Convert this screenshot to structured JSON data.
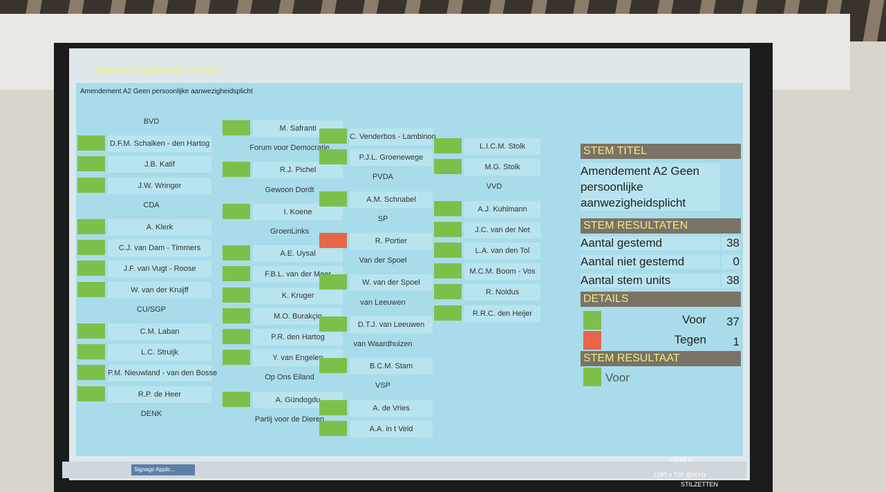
{
  "header": {
    "title": "Raadsvergadering 9-4-2024",
    "subtitle": "Amendement A2 Geen persoonlijke aanwezigheidsplicht"
  },
  "columns": [
    {
      "entries": [
        {
          "name": "BVD"
        },
        {
          "name": "D.F.M. Schalken - den Hartog",
          "color": "#7cc04b"
        },
        {
          "name": "J.B. Katif",
          "color": "#7cc04b"
        },
        {
          "name": "J.W. Wringer",
          "color": "#7cc04b"
        },
        {
          "name": "CDA"
        },
        {
          "name": "A. Klerk",
          "color": "#7cc04b"
        },
        {
          "name": "C.J. van Dam - Timmers",
          "color": "#7cc04b"
        },
        {
          "name": "J.F. van Vugt - Roose",
          "color": "#7cc04b"
        },
        {
          "name": "W. van der Kruijff",
          "color": "#7cc04b"
        },
        {
          "name": "CU/SGP"
        },
        {
          "name": "C.M. Laban",
          "color": "#7cc04b"
        },
        {
          "name": "L.C. Struijk",
          "color": "#7cc04b"
        },
        {
          "name": "P.M. Nieuwland - van den Bosse",
          "color": "#7cc04b"
        },
        {
          "name": "R.P. de Heer",
          "color": "#7cc04b"
        },
        {
          "name": "DENK"
        }
      ]
    },
    {
      "entries": [
        {
          "name": "M. Safranti",
          "color": "#7cc04b"
        },
        {
          "name": "Forum voor Democratie"
        },
        {
          "name": "R.J. Pichel",
          "color": "#7cc04b"
        },
        {
          "name": "Gewoon Dordt"
        },
        {
          "name": "I. Koene",
          "color": "#7cc04b"
        },
        {
          "name": "GroenLinks"
        },
        {
          "name": "A.E. Uysal",
          "color": "#7cc04b"
        },
        {
          "name": "F.B.L. van der Meer",
          "color": "#7cc04b"
        },
        {
          "name": "K. Kruger",
          "color": "#7cc04b"
        },
        {
          "name": "M.O. Burakçin",
          "color": "#7cc04b"
        },
        {
          "name": "P.R. den Hartog",
          "color": "#7cc04b"
        },
        {
          "name": "Y. van Engelen",
          "color": "#7cc04b"
        },
        {
          "name": "Op Ons Eiland"
        },
        {
          "name": "A. Gündogdu",
          "color": "#7cc04b"
        },
        {
          "name": "Partij voor de Dieren"
        }
      ]
    },
    {
      "entries": [
        {
          "name": "C. Venderbos - Lambinon",
          "color": "#7cc04b"
        },
        {
          "name": "P.J.L. Groenewege",
          "color": "#7cc04b"
        },
        {
          "name": "PVDA"
        },
        {
          "name": "A.M. Schnabel",
          "color": "#7cc04b"
        },
        {
          "name": "SP"
        },
        {
          "name": "R. Portier",
          "color": "#e8654a"
        },
        {
          "name": "Van der Spoel"
        },
        {
          "name": "W. van der Spoel",
          "color": "#7cc04b"
        },
        {
          "name": "van Leeuwen"
        },
        {
          "name": "D.T.J. van Leeuwen",
          "color": "#7cc04b"
        },
        {
          "name": "van Waardhuizen"
        },
        {
          "name": "B.C.M. Stam",
          "color": "#7cc04b"
        },
        {
          "name": "VSP"
        },
        {
          "name": "A. de Vries",
          "color": "#7cc04b"
        },
        {
          "name": "A.A. in t Veld",
          "color": "#7cc04b"
        }
      ]
    },
    {
      "entries": [
        {
          "name": "L.I.C.M. Stolk",
          "color": "#7cc04b"
        },
        {
          "name": "M.G. Stolk",
          "color": "#7cc04b"
        },
        {
          "name": "VVD"
        },
        {
          "name": "A.J. Kuhlmann",
          "color": "#7cc04b"
        },
        {
          "name": "J.C. van der Net",
          "color": "#7cc04b"
        },
        {
          "name": "L.A. van den Tol",
          "color": "#7cc04b"
        },
        {
          "name": "M.C.M. Boom - Vos",
          "color": "#7cc04b"
        },
        {
          "name": "R. Noldus",
          "color": "#7cc04b"
        },
        {
          "name": "R.R.C. den Heijer",
          "color": "#7cc04b"
        }
      ]
    }
  ],
  "panel": {
    "title_heading": "STEM TITEL",
    "title": "Amendement A2 Geen persoonlijke aanwezigheidsplicht",
    "results_heading": "STEM RESULTATEN",
    "results": [
      {
        "label": "Aantal gestemd",
        "value": 38
      },
      {
        "label": "Aantal niet gestemd",
        "value": 0
      },
      {
        "label": "Aantal stem units",
        "value": 38
      }
    ],
    "details_heading": "DETAILS",
    "details": [
      {
        "label": "Voor",
        "value": 37,
        "color": "#7cc04b"
      },
      {
        "label": "Tegen",
        "value": 1,
        "color": "#e8654a"
      }
    ],
    "outcome_heading": "STEM RESULTAAT",
    "outcome": "Voor",
    "outcome_color": "#7cc04b"
  },
  "taskbar": {
    "app": "Signage Applic...",
    "input": "HDMI 2",
    "resolution": "1280 x 720 @50Hz",
    "button": "STILZETTEN"
  }
}
